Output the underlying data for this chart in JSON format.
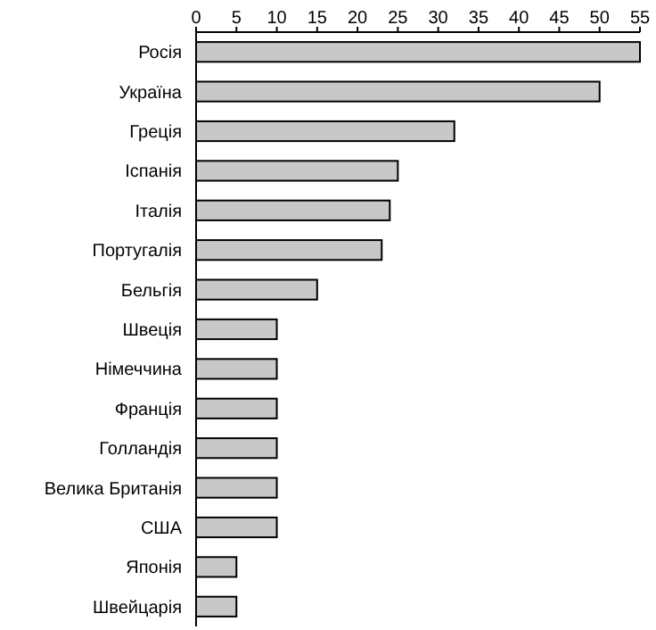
{
  "chart_data": {
    "type": "bar",
    "orientation": "horizontal",
    "categories": [
      "Росія",
      "Україна",
      "Греція",
      "Іспанія",
      "Італія",
      "Португалія",
      "Бельгія",
      "Швеція",
      "Німеччина",
      "Франція",
      "Голландія",
      "Велика Британія",
      "США",
      "Японія",
      "Швейцарія"
    ],
    "values": [
      55,
      50,
      32,
      25,
      24,
      23,
      15,
      10,
      10,
      10,
      10,
      10,
      10,
      5,
      5
    ],
    "color": "#c8c8c8",
    "xlim": [
      0,
      55
    ],
    "xticks": [
      0,
      5,
      10,
      15,
      20,
      25,
      30,
      35,
      40,
      45,
      50,
      55
    ]
  }
}
